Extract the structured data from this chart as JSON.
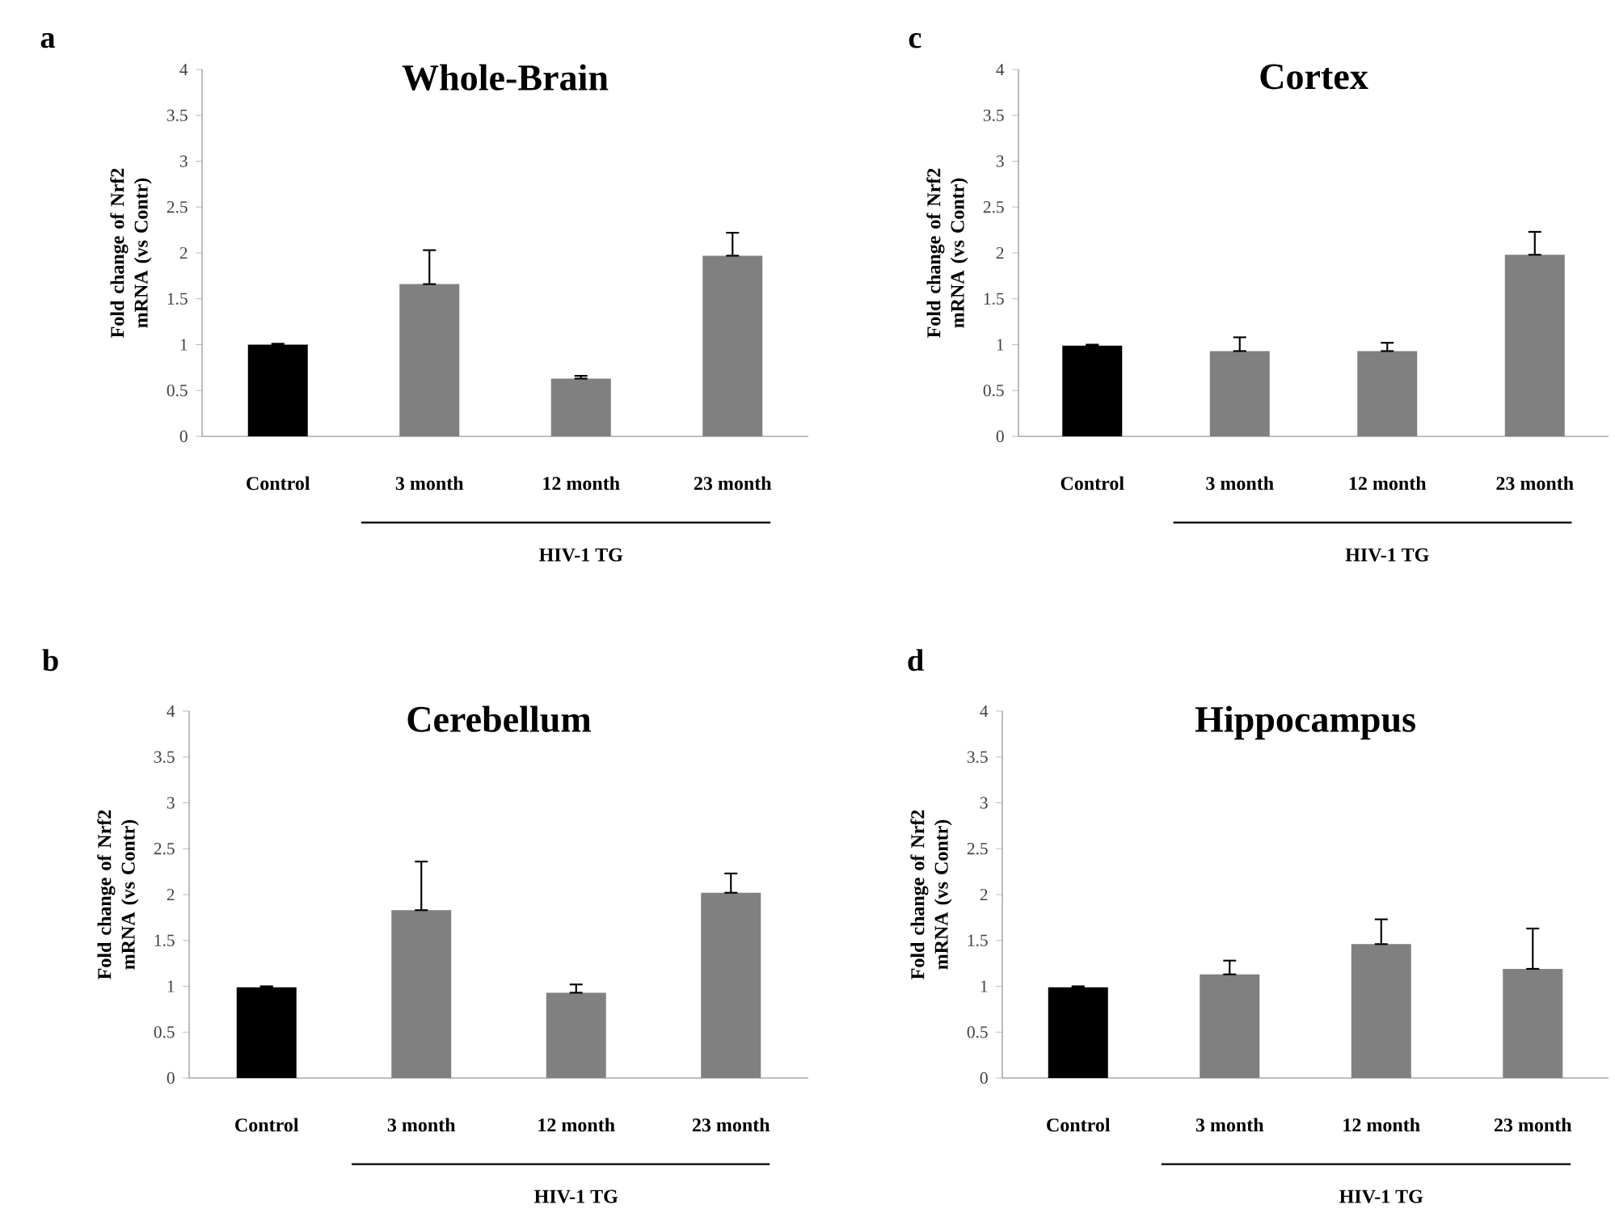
{
  "chart_data": [
    {
      "type": "bar",
      "title": "Whole-Brain",
      "ylabel": "Fold change of Nrf2 mRNA (vs Contr)",
      "categories": [
        "Control",
        "3 month",
        "12 month",
        "23 month"
      ],
      "values": [
        1.0,
        1.66,
        0.63,
        1.97
      ],
      "colors": [
        "#000000",
        "#808080",
        "#808080",
        "#808080"
      ],
      "errors": [
        [
          1.0,
          1.01
        ],
        [
          1.66,
          2.03
        ],
        [
          0.63,
          0.66
        ],
        [
          1.97,
          2.22
        ]
      ],
      "ylim": [
        0,
        4
      ],
      "yticks": [
        0,
        0.5,
        1,
        1.5,
        2,
        2.5,
        3,
        3.5,
        4
      ],
      "annotations": [
        "a",
        "HIV-1 TG"
      ]
    },
    {
      "type": "bar",
      "title": "Cortex",
      "ylabel": "Fold change of Nrf2 mRNA (vs Contr)",
      "categories": [
        "Control",
        "3 month",
        "12 month",
        "23 month"
      ],
      "values": [
        0.99,
        0.93,
        0.93,
        1.98
      ],
      "colors": [
        "#000000",
        "#808080",
        "#808080",
        "#808080"
      ],
      "errors": [
        [
          0.99,
          1.0
        ],
        [
          0.93,
          1.08
        ],
        [
          0.93,
          1.02
        ],
        [
          1.98,
          2.23
        ]
      ],
      "ylim": [
        0,
        4
      ],
      "yticks": [
        0,
        0.5,
        1,
        1.5,
        2,
        2.5,
        3,
        3.5,
        4
      ],
      "annotations": [
        "c",
        "HIV-1 TG"
      ]
    },
    {
      "type": "bar",
      "title": "Cerebellum",
      "ylabel": "Fold change of Nrf2 mRNA (vs Contr)",
      "categories": [
        "Control",
        "3 month",
        "12 month",
        "23 month"
      ],
      "values": [
        0.99,
        1.83,
        0.93,
        2.02
      ],
      "colors": [
        "#000000",
        "#808080",
        "#808080",
        "#808080"
      ],
      "errors": [
        [
          0.99,
          1.0
        ],
        [
          1.83,
          2.36
        ],
        [
          0.93,
          1.02
        ],
        [
          2.02,
          2.23
        ]
      ],
      "ylim": [
        0,
        4
      ],
      "yticks": [
        0,
        0.5,
        1,
        1.5,
        2,
        2.5,
        3,
        3.5,
        4
      ],
      "annotations": [
        "b",
        "HIV-1 TG"
      ]
    },
    {
      "type": "bar",
      "title": "Hippocampus",
      "ylabel": "Fold change of Nrf2 mRNA (vs Contr)",
      "categories": [
        "Control",
        "3 month",
        "12 month",
        "23 month"
      ],
      "values": [
        0.99,
        1.13,
        1.46,
        1.19
      ],
      "colors": [
        "#000000",
        "#808080",
        "#808080",
        "#808080"
      ],
      "errors": [
        [
          0.99,
          1.0
        ],
        [
          1.13,
          1.28
        ],
        [
          1.46,
          1.73
        ],
        [
          1.19,
          1.63
        ]
      ],
      "ylim": [
        0,
        4
      ],
      "yticks": [
        0,
        0.5,
        1,
        1.5,
        2,
        2.5,
        3,
        3.5,
        4
      ],
      "annotations": [
        "d",
        "HIV-1 TG"
      ]
    }
  ]
}
